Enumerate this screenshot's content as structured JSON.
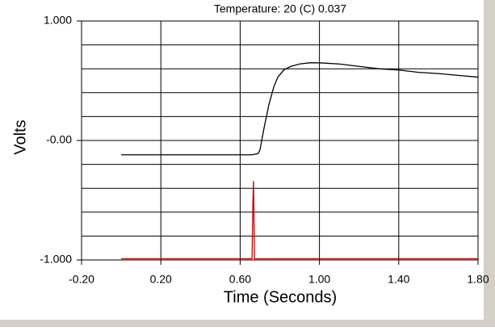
{
  "chart_data": {
    "type": "line",
    "title": "Temperature: 20 (C) 0.037",
    "xlabel": "Time (Seconds)",
    "ylabel": "Volts",
    "xlim": [
      -0.2,
      1.8
    ],
    "ylim": [
      -1,
      1
    ],
    "xticks": [
      {
        "value": -0.2,
        "label": "-0.20"
      },
      {
        "value": 0.2,
        "label": "0.20"
      },
      {
        "value": 0.6,
        "label": "0.60"
      },
      {
        "value": 1,
        "label": "1.00"
      },
      {
        "value": 1.4,
        "label": "1.40"
      },
      {
        "value": 1.8,
        "label": "1.80"
      }
    ],
    "yticks": [
      {
        "value": 1,
        "label": "1.000"
      },
      {
        "value": 0,
        "label": "-0.00"
      },
      {
        "value": -1,
        "label": "-1.000"
      }
    ],
    "ygrid": [
      -0.8,
      -0.6,
      -0.4,
      -0.2,
      0.2,
      0.4,
      0.6,
      0.8
    ],
    "grid": true,
    "series": [
      {
        "color": "#000000",
        "x": [
          0,
          0.1,
          0.2,
          0.3,
          0.4,
          0.5,
          0.6,
          0.66,
          0.69,
          0.7,
          0.72,
          0.745,
          0.77,
          0.79,
          0.82,
          0.855,
          0.9,
          0.95,
          1.0,
          1.1,
          1.2,
          1.3,
          1.4,
          1.5,
          1.6,
          1.7,
          1.8
        ],
        "values": [
          -0.12,
          -0.12,
          -0.12,
          -0.12,
          -0.12,
          -0.12,
          -0.12,
          -0.12,
          -0.11,
          -0.08,
          0.1,
          0.3,
          0.45,
          0.53,
          0.59,
          0.62,
          0.64,
          0.65,
          0.65,
          0.64,
          0.62,
          0.6,
          0.59,
          0.57,
          0.56,
          0.545,
          0.53
        ]
      },
      {
        "color": "#c00000",
        "x": [
          0,
          0.66,
          0.664,
          0.667,
          0.669,
          0.672,
          0.676,
          1.8
        ],
        "values": [
          -0.99,
          -0.99,
          -0.55,
          -0.34,
          -0.55,
          -0.99,
          -0.99,
          -0.99
        ]
      }
    ]
  }
}
